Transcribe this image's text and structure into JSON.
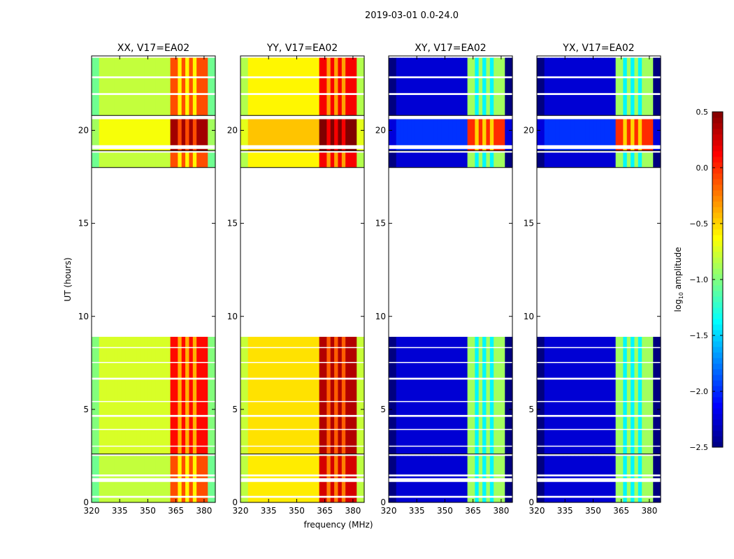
{
  "chart_data": {
    "type": "heatmap",
    "title": "2019-03-01 0.0-24.0",
    "xlabel": "frequency (MHz)",
    "ylabel": "UT (hours)",
    "xlim": [
      320,
      386
    ],
    "ylim": [
      0,
      24
    ],
    "xticks": [
      320,
      335,
      350,
      365,
      380
    ],
    "xtick_labels": [
      "320",
      "335",
      "350",
      "365",
      "380"
    ],
    "yticks": [
      0,
      5,
      10,
      15,
      20
    ],
    "ytick_labels": [
      "0",
      "5",
      "10",
      "15",
      "20"
    ],
    "colorbar": {
      "label_main": "log",
      "label_sub": "10",
      "label_rest": " amplitude",
      "range": [
        -2.5,
        0.5
      ],
      "ticks": [
        0.5,
        0.0,
        -0.5,
        -1.0,
        -1.5,
        -2.0,
        -2.5
      ],
      "tick_labels": [
        "0.5",
        "0.0",
        "−0.5",
        "−1.0",
        "−1.5",
        "−2.0",
        "−2.5"
      ],
      "colormap": "jet"
    },
    "time_segments": [
      [
        0,
        2.5
      ],
      [
        2.6,
        8.9
      ],
      [
        18.0,
        18.8
      ],
      [
        18.9,
        20.6
      ],
      [
        20.8,
        23.9
      ]
    ],
    "gaps": [
      [
        0.25,
        0.35
      ],
      [
        1.1,
        1.3
      ],
      [
        1.4,
        1.5
      ],
      [
        3.0,
        3.05
      ],
      [
        3.9,
        3.95
      ],
      [
        4.6,
        4.7
      ],
      [
        5.4,
        5.45
      ],
      [
        6.6,
        6.7
      ],
      [
        7.5,
        7.55
      ],
      [
        8.3,
        8.35
      ],
      [
        19.0,
        19.2
      ],
      [
        21.9,
        22.0
      ],
      [
        22.8,
        22.9
      ]
    ],
    "rfi_band": [
      362,
      381
    ],
    "rfi_dips": [
      366.5,
      371,
      375.5
    ],
    "panels": [
      {
        "title": "XX, V17=EA02",
        "base": -0.8,
        "band": -0.1,
        "segment_boost": [
          0,
          0.2,
          0,
          0.5,
          0
        ]
      },
      {
        "title": "YY, V17=EA02",
        "base": -0.6,
        "band": 0.15,
        "segment_boost": [
          0.1,
          0.2,
          0,
          0.5,
          0
        ]
      },
      {
        "title": "XY, V17=EA02",
        "base": -2.25,
        "band": -0.9,
        "segment_boost": [
          0,
          0,
          0,
          0.9,
          0
        ]
      },
      {
        "title": "YX, V17=EA02",
        "base": -2.25,
        "band": -0.9,
        "segment_boost": [
          0,
          0,
          0,
          0.9,
          0
        ]
      }
    ]
  }
}
